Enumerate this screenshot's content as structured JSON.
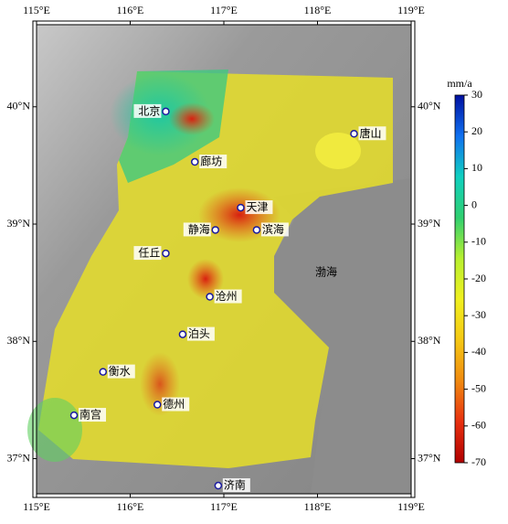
{
  "map": {
    "type": "map",
    "lonlim": [
      115,
      119
    ],
    "latlim": [
      36.7,
      40.7
    ],
    "xticks": [
      {
        "value": 115,
        "label": "115°E"
      },
      {
        "value": 116,
        "label": "116°E"
      },
      {
        "value": 117,
        "label": "117°E"
      },
      {
        "value": 118,
        "label": "118°E"
      },
      {
        "value": 119,
        "label": "119°E"
      }
    ],
    "yticks": [
      {
        "value": 37,
        "label": "37°N"
      },
      {
        "value": 38,
        "label": "38°N"
      },
      {
        "value": 39,
        "label": "39°N"
      },
      {
        "value": 40,
        "label": "40°N"
      }
    ],
    "sea_label": "渤海",
    "cities": [
      {
        "name": "北京",
        "lon": 116.38,
        "lat": 39.96,
        "side": "left"
      },
      {
        "name": "唐山",
        "lon": 118.39,
        "lat": 39.77,
        "side": "right"
      },
      {
        "name": "廊坊",
        "lon": 116.69,
        "lat": 39.53,
        "side": "right"
      },
      {
        "name": "天津",
        "lon": 117.18,
        "lat": 39.14,
        "side": "right"
      },
      {
        "name": "静海",
        "lon": 116.91,
        "lat": 38.95,
        "side": "left"
      },
      {
        "name": "滨海",
        "lon": 117.35,
        "lat": 38.95,
        "side": "right"
      },
      {
        "name": "任丘",
        "lon": 116.38,
        "lat": 38.75,
        "side": "left"
      },
      {
        "name": "沧州",
        "lon": 116.85,
        "lat": 38.38,
        "side": "right"
      },
      {
        "name": "泊头",
        "lon": 116.56,
        "lat": 38.06,
        "side": "right"
      },
      {
        "name": "衡水",
        "lon": 115.71,
        "lat": 37.74,
        "side": "right"
      },
      {
        "name": "德州",
        "lon": 116.29,
        "lat": 37.46,
        "side": "right"
      },
      {
        "name": "南宫",
        "lon": 115.4,
        "lat": 37.37,
        "side": "right"
      },
      {
        "name": "济南",
        "lon": 116.94,
        "lat": 36.77,
        "side": "right"
      }
    ],
    "colorbar": {
      "unit": "mm/a",
      "lim": [
        -70,
        30
      ],
      "ticks": [
        -70,
        -60,
        -50,
        -40,
        -30,
        -20,
        -10,
        0,
        10,
        20,
        30
      ],
      "colors": [
        "#b00000",
        "#e83010",
        "#f08a10",
        "#f5c814",
        "#f0f020",
        "#b8f030",
        "#30d070",
        "#10d0c0",
        "#1070f0",
        "#0010a0"
      ]
    }
  }
}
